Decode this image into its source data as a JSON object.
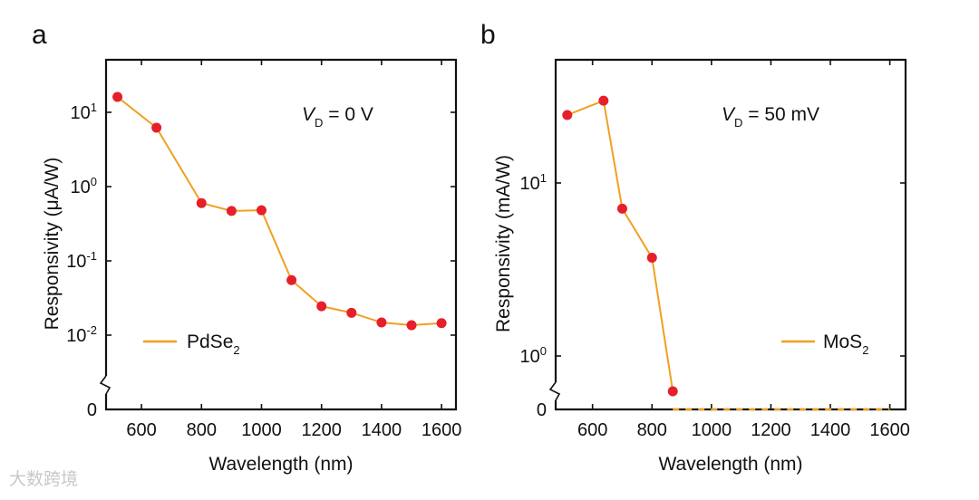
{
  "colors": {
    "line": "#F0A020",
    "marker": "#E5202A",
    "axis": "#111111"
  },
  "watermark": "大数跨境",
  "chart_data": [
    {
      "type": "line",
      "panel_label": "a",
      "annotation": {
        "var": "V",
        "sub": "D",
        "rest": " = 0 V"
      },
      "xlabel": "Wavelength (nm)",
      "ylabel": "Responsivity (μA/W)",
      "xlim": [
        482,
        1648
      ],
      "ylim_log10": [
        -2,
        1.707
      ],
      "yscale": "log with axis break to 0",
      "xticks": [
        600,
        800,
        1000,
        1200,
        1400,
        1600
      ],
      "yticks": [
        {
          "base": "10",
          "exp": "1",
          "v": 1
        },
        {
          "base": "10",
          "exp": "0",
          "v": 0
        },
        {
          "base": "10",
          "exp": "-1",
          "v": -1
        },
        {
          "base": "10",
          "exp": "-2",
          "v": -2
        }
      ],
      "zero_label": "0",
      "legend": {
        "name": "PdSe",
        "sub": "2",
        "placement": "lower-left"
      },
      "series": [
        {
          "name": "PdSe2",
          "x": [
            520,
            650,
            800,
            900,
            1000,
            1100,
            1200,
            1300,
            1400,
            1500,
            1600
          ],
          "y": [
            16.1,
            6.2,
            0.6,
            0.47,
            0.48,
            0.055,
            0.0245,
            0.02,
            0.0148,
            0.0136,
            0.0145
          ]
        }
      ],
      "zero_segment": null
    },
    {
      "type": "line",
      "panel_label": "b",
      "annotation": {
        "var": "V",
        "sub": "D",
        "rest": " = 50 mV"
      },
      "xlabel": "Wavelength (nm)",
      "ylabel": "Responsivity (mA/W)",
      "xlim": [
        476,
        1653
      ],
      "ylim_log10": [
        0,
        1.712
      ],
      "yscale": "log with axis break to 0",
      "xticks": [
        600,
        800,
        1000,
        1200,
        1400,
        1600
      ],
      "yticks": [
        {
          "base": "10",
          "exp": "1",
          "v": 1
        },
        {
          "base": "10",
          "exp": "0",
          "v": 0
        }
      ],
      "zero_label": "0",
      "legend": {
        "name": "MoS",
        "sub": "2",
        "placement": "lower-right"
      },
      "series": [
        {
          "name": "MoS2",
          "x": [
            515,
            637,
            700,
            800,
            870
          ],
          "y": [
            24.7,
            29.9,
            7.1,
            3.7,
            0.625
          ]
        }
      ],
      "zero_segment": {
        "x": [
          870,
          1600
        ],
        "y": 0,
        "style": "dashed"
      }
    }
  ]
}
